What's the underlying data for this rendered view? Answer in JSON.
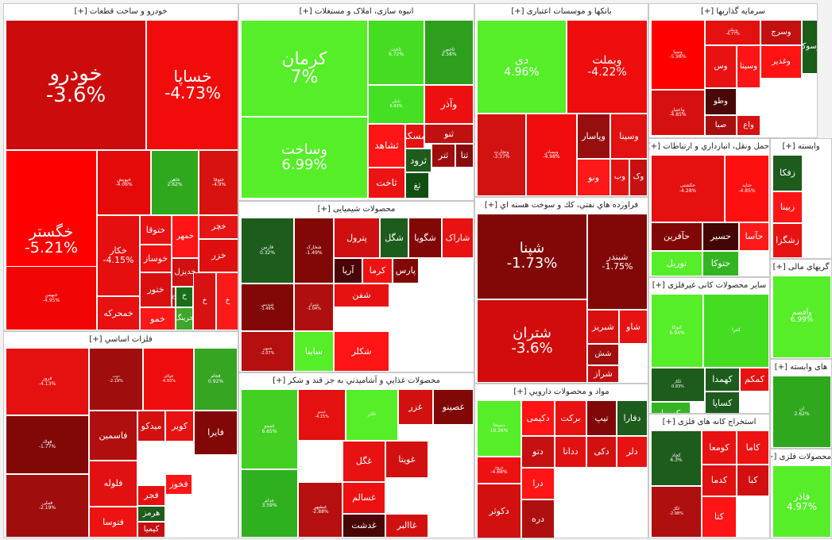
{
  "sectors": [
    {
      "title": "خودرو و ساخت قطعات [+]",
      "tiles": [
        {
          "name": "خودرو",
          "change": "-3.6%",
          "color": "#cc0c0c"
        },
        {
          "name": "خساپا",
          "change": "-4.73%",
          "color": "#f20b0b"
        },
        {
          "name": "خگستر",
          "change": "-5.21%",
          "color": "#ff0000"
        },
        {
          "name": "خبهمن",
          "change": "-4.95%",
          "color": "#f20505"
        },
        {
          "name": "خپویش",
          "change": "-4.06%",
          "color": "#e50a0a"
        },
        {
          "name": "خاهن",
          "change": "2.62%",
          "color": "#2fa81e"
        },
        {
          "name": "ختوقا",
          "change": "-4.9%",
          "color": "#d8120e"
        },
        {
          "name": "خکار",
          "change": "-4.15%",
          "color": "#e60f0f"
        },
        {
          "name": "خمحرکه",
          "change": "",
          "color": "#e81010"
        },
        {
          "name": "ختور",
          "change": "",
          "color": "#d81010"
        },
        {
          "name": "خزر",
          "change": "",
          "color": "#e00f0f"
        },
        {
          "name": "خمهر",
          "change": "",
          "color": "#ff1515"
        },
        {
          "name": "ختوقا",
          "change": "",
          "color": "#e81212"
        },
        {
          "name": "خوساز",
          "change": "",
          "color": "#ee1010"
        },
        {
          "name": "خدیزل",
          "change": "",
          "color": "#d01111"
        },
        {
          "name": "خچر",
          "change": "",
          "color": "#e51515"
        },
        {
          "name": "خمو",
          "change": "",
          "color": "#ff1818"
        },
        {
          "name": "خرینگ",
          "change": "",
          "color": "#3ea628"
        },
        {
          "name": "خ",
          "change": "",
          "color": "#1a6e1a"
        },
        {
          "name": "خ",
          "change": "",
          "color": "#d81212"
        },
        {
          "name": "خ",
          "change": "",
          "color": "#ff1a1a"
        },
        {
          "name": "خ",
          "change": "",
          "color": "#b50f0f"
        }
      ]
    },
    {
      "title": "انبوه سازی، املاک و مستغلات [+]",
      "tiles": [
        {
          "name": "کرمان",
          "change": "7%",
          "color": "#55ee28"
        },
        {
          "name": "وساخت",
          "change": "6.99%",
          "color": "#55ee28"
        },
        {
          "name": "ثاخت",
          "change": "6.72%",
          "color": "#44dd22"
        },
        {
          "name": "ثاخص",
          "change": "2.58%",
          "color": "#2d9f1d"
        },
        {
          "name": "ثامان",
          "change": "6.93%",
          "color": "#45e023"
        },
        {
          "name": "وآذر",
          "change": "",
          "color": "#ee1010"
        },
        {
          "name": "ثنو",
          "change": "",
          "color": "#c01010"
        },
        {
          "name": "ثمسکن",
          "change": "",
          "color": "#e51212"
        },
        {
          "name": "ثشاهد",
          "change": "",
          "color": "#ff1515"
        },
        {
          "name": "ثرود",
          "change": "",
          "color": "#1d5c1d"
        },
        {
          "name": "ثتر",
          "change": "",
          "color": "#a00d0d"
        },
        {
          "name": "ثتا",
          "change": "",
          "color": "#8a0b0b"
        },
        {
          "name": "ثاخت",
          "change": "",
          "color": "#ee1313"
        },
        {
          "name": "ثغ",
          "change": "",
          "color": "#0f4f0f"
        }
      ]
    },
    {
      "title": "بانکها و موسسات اعتباری [+]",
      "tiles": [
        {
          "name": "دی",
          "change": "4.96%",
          "color": "#55ee28"
        },
        {
          "name": "وبملت",
          "change": "-4.22%",
          "color": "#ee0c0c"
        },
        {
          "name": "وتجارت",
          "change": "-3.37%",
          "color": "#d21111"
        },
        {
          "name": "وبصادر",
          "change": "-4.98%",
          "color": "#f00c0c"
        },
        {
          "name": "وپاسار",
          "change": "",
          "color": "#960e0e"
        },
        {
          "name": "وسینا",
          "change": "",
          "color": "#e21212"
        },
        {
          "name": "ونو",
          "change": "",
          "color": "#ff1818"
        },
        {
          "name": "وب",
          "change": "",
          "color": "#e51414"
        },
        {
          "name": "وک",
          "change": "",
          "color": "#c41010"
        }
      ]
    },
    {
      "title": "سرمایه گذاریها [+]",
      "tiles": [
        {
          "name": "وسپا",
          "change": "-5.98%",
          "color": "#ff0000"
        },
        {
          "name": "ونیکی",
          "change": "-4.77%",
          "color": "#e51010"
        },
        {
          "name": "وسرج",
          "change": "",
          "color": "#c41010"
        },
        {
          "name": "وسوک",
          "change": "",
          "color": "#1a5c1a"
        },
        {
          "name": "وس",
          "change": "",
          "color": "#e81212"
        },
        {
          "name": "وسینا",
          "change": "",
          "color": "#ff1515"
        },
        {
          "name": "وطو",
          "change": "",
          "color": "#4a0808"
        },
        {
          "name": "صبا",
          "change": "",
          "color": "#a80f0f"
        },
        {
          "name": "واعتبار",
          "change": "-4.85%",
          "color": "#d61010"
        },
        {
          "name": "وغدیر",
          "change": "",
          "color": "#ff1313"
        },
        {
          "name": "واع",
          "change": "",
          "color": "#d81111"
        }
      ]
    },
    {
      "title": "فراورده هاي نفتي، كك و سوخت هسته اي [+]",
      "tiles": [
        {
          "name": "شپنا",
          "change": "-1.73%",
          "color": "#820808"
        },
        {
          "name": "شبندر",
          "change": "-1.75%",
          "color": "#820808"
        },
        {
          "name": "شتران",
          "change": "-3.6%",
          "color": "#d20c0c"
        },
        {
          "name": "شبریز",
          "change": "",
          "color": "#d81010"
        },
        {
          "name": "شاو",
          "change": "",
          "color": "#e81212"
        },
        {
          "name": "شش",
          "change": "",
          "color": "#a00e0e"
        },
        {
          "name": "شراز",
          "change": "",
          "color": "#c01010"
        }
      ]
    },
    {
      "title": "حمل ونقل، انبارداري و ارتباطات [+]",
      "tiles": [
        {
          "name": "حکشتی",
          "change": "-4.28%",
          "color": "#e51010"
        },
        {
          "name": "حتاید",
          "change": "-4.85%",
          "color": "#ff1010"
        },
        {
          "name": "حآفرین",
          "change": "",
          "color": "#820808"
        },
        {
          "name": "حسیر",
          "change": "",
          "color": "#440505"
        },
        {
          "name": "حآسا",
          "change": "",
          "color": "#ff1a1a"
        },
        {
          "name": "توریل",
          "change": "",
          "color": "#55ee28"
        },
        {
          "name": "حتوکا",
          "change": "",
          "color": "#33b522"
        }
      ]
    },
    {
      "title": "محصولات شیمیایی [+]",
      "tiles": [
        {
          "name": "فارس",
          "change": "0.32%",
          "color": "#1d5c1d"
        },
        {
          "name": "شخارک",
          "change": "-1.49%",
          "color": "#820808"
        },
        {
          "name": "پترول",
          "change": "",
          "color": "#d01010"
        },
        {
          "name": "شگل",
          "change": "",
          "color": "#1d5c1d"
        },
        {
          "name": "شگویا",
          "change": "",
          "color": "#820808"
        },
        {
          "name": "شیراز",
          "change": "-1.04%",
          "color": "#b00f0f"
        },
        {
          "name": "شپدیس",
          "change": "-1.49%",
          "color": "#820808"
        },
        {
          "name": "ساینا",
          "change": "",
          "color": "#55ee28"
        },
        {
          "name": "شاراک",
          "change": "",
          "color": "#e81212"
        },
        {
          "name": "آریا",
          "change": "",
          "color": "#4a0606"
        },
        {
          "name": "کرما",
          "change": "",
          "color": "#ee1212"
        },
        {
          "name": "پارس",
          "change": "",
          "color": "#820808"
        },
        {
          "name": "شفن",
          "change": "",
          "color": "#e81111"
        },
        {
          "name": "شکلر",
          "change": "",
          "color": "#ff1515"
        },
        {
          "name": "شبهن",
          "change": "-2.07%",
          "color": "#b50f0f"
        }
      ]
    },
    {
      "title": "محصولات غذایي و آشامیدني به جز قند و شکر [+]",
      "tiles": [
        {
          "name": "غمینو",
          "change": "6.65%",
          "color": "#44d022"
        },
        {
          "name": "غدام",
          "change": "3.59%",
          "color": "#2fb01e"
        },
        {
          "name": "غپینو",
          "change": "-4.15%",
          "color": "#e51010"
        },
        {
          "name": "غاذر",
          "change": "",
          "color": "#55ee28"
        },
        {
          "name": "غزر",
          "change": "",
          "color": "#d21010"
        },
        {
          "name": "غصینو",
          "change": "",
          "color": "#820808"
        },
        {
          "name": "غگل",
          "change": "",
          "color": "#e81212"
        },
        {
          "name": "غویتا",
          "change": "",
          "color": "#d21010"
        },
        {
          "name": "غسالم",
          "change": "",
          "color": "#ee1111"
        },
        {
          "name": "غدشت",
          "change": "",
          "color": "#4a0606"
        },
        {
          "name": "غبشهر",
          "change": "-2.88%",
          "color": "#b50f0f"
        },
        {
          "name": "غاالبر",
          "change": "",
          "color": "#d21010"
        }
      ]
    },
    {
      "title": "فلزات اساسي [+]",
      "tiles": [
        {
          "name": "فروز",
          "change": "-4.13%",
          "color": "#e51010"
        },
        {
          "name": "فولاد",
          "change": "-1.77%",
          "color": "#820808"
        },
        {
          "name": "فملی",
          "change": "-2.19%",
          "color": "#a00d0d"
        },
        {
          "name": "ذوب",
          "change": "-2.19%",
          "color": "#a00d0d"
        },
        {
          "name": "فولای",
          "change": "-4.93%",
          "color": "#ee0c0c"
        },
        {
          "name": "فجام",
          "change": "0.92%",
          "color": "#36a522"
        },
        {
          "name": "فاسمین",
          "change": "",
          "color": "#b00f0f"
        },
        {
          "name": "فلوله",
          "change": "",
          "color": "#e21111"
        },
        {
          "name": "فتوسا",
          "change": "",
          "color": "#ee1212"
        },
        {
          "name": "فایرا",
          "change": "",
          "color": "#820808"
        },
        {
          "name": "کویر",
          "change": "",
          "color": "#e81212"
        },
        {
          "name": "میدکو",
          "change": "",
          "color": "#d21010"
        },
        {
          "name": "فخوز",
          "change": "",
          "color": "#ff1515"
        },
        {
          "name": "فجر",
          "change": "",
          "color": "#e51111"
        },
        {
          "name": "هرمز",
          "change": "",
          "color": "#1d5c1d"
        },
        {
          "name": "کیمیا",
          "change": "",
          "color": "#c41010"
        }
      ]
    },
    {
      "title": "مواد و محصولات دارويي [+]",
      "tiles": [
        {
          "name": "دسبحا",
          "change": "10.26%",
          "color": "#55ee28"
        },
        {
          "name": "برکت",
          "change": "",
          "color": "#e81212"
        },
        {
          "name": "دکیمی",
          "change": "",
          "color": "#ff1515"
        },
        {
          "name": "تیپ",
          "change": "",
          "color": "#820808"
        },
        {
          "name": "دفارا",
          "change": "",
          "color": "#1d5c1d"
        },
        {
          "name": "دلر",
          "change": "",
          "color": "#e81212"
        },
        {
          "name": "ددانا",
          "change": "",
          "color": "#e21111"
        },
        {
          "name": "دکی",
          "change": "",
          "color": "#d21010"
        },
        {
          "name": "درا",
          "change": "",
          "color": "#ff1515"
        },
        {
          "name": "دتو",
          "change": "",
          "color": "#c41010"
        },
        {
          "name": "دکوثر",
          "change": "",
          "color": "#d21010"
        },
        {
          "name": "درود",
          "change": "-4.68%",
          "color": "#ee1111"
        },
        {
          "name": "دره",
          "change": "",
          "color": "#b00f0f"
        }
      ]
    },
    {
      "title": "سایر محصولات کانی غیرفلزی [+]",
      "tiles": [
        {
          "name": "کتوکا",
          "change": "6.94%",
          "color": "#55ee28"
        },
        {
          "name": "کفرا",
          "change": "",
          "color": "#44dd22"
        },
        {
          "name": "کگاز",
          "change": "0.83%",
          "color": "#1d5c1d"
        },
        {
          "name": "کهمدا",
          "change": "",
          "color": "#1d5c1d"
        },
        {
          "name": "کمکم",
          "change": "",
          "color": "#e81212"
        },
        {
          "name": "کسرا",
          "change": "",
          "color": "#33b522"
        },
        {
          "name": "کساپا",
          "change": "",
          "color": "#1d5c1d"
        }
      ]
    },
    {
      "title": "استخراج کانه های فلزی [+]",
      "tiles": [
        {
          "name": "کچاد",
          "change": "6.3%",
          "color": "#1d5c1d"
        },
        {
          "name": "کومعا",
          "change": "",
          "color": "#e81212"
        },
        {
          "name": "کاما",
          "change": "",
          "color": "#ee1212"
        },
        {
          "name": "کدما",
          "change": "",
          "color": "#e21111"
        },
        {
          "name": "کبا",
          "change": "",
          "color": "#d21010"
        },
        {
          "name": "کگل",
          "change": "-2.98%",
          "color": "#b00f0f"
        },
        {
          "name": "کتا",
          "change": "",
          "color": "#ff1515"
        }
      ]
    },
    {
      "title": "وابسته [+]",
      "tiles": [
        {
          "name": "زفکا",
          "change": "",
          "color": "#1d5c1d"
        },
        {
          "name": "زبینا",
          "change": "",
          "color": "#ff1515"
        },
        {
          "name": "زشگزا",
          "change": "",
          "color": "#e81212"
        }
      ]
    },
    {
      "title": "گریهای مالی [+]",
      "tiles": [
        {
          "name": "وآفصم",
          "change": "6.99%",
          "color": "#55ee28"
        }
      ]
    },
    {
      "title": "های وابسته [+]",
      "tiles": [
        {
          "name": "ان",
          "change": "2.62%",
          "color": "#2fa81e"
        }
      ]
    },
    {
      "title": "محصولات فلزی [+]",
      "tiles": [
        {
          "name": "فاذر",
          "change": "4.97%",
          "color": "#55ee28"
        }
      ]
    }
  ]
}
